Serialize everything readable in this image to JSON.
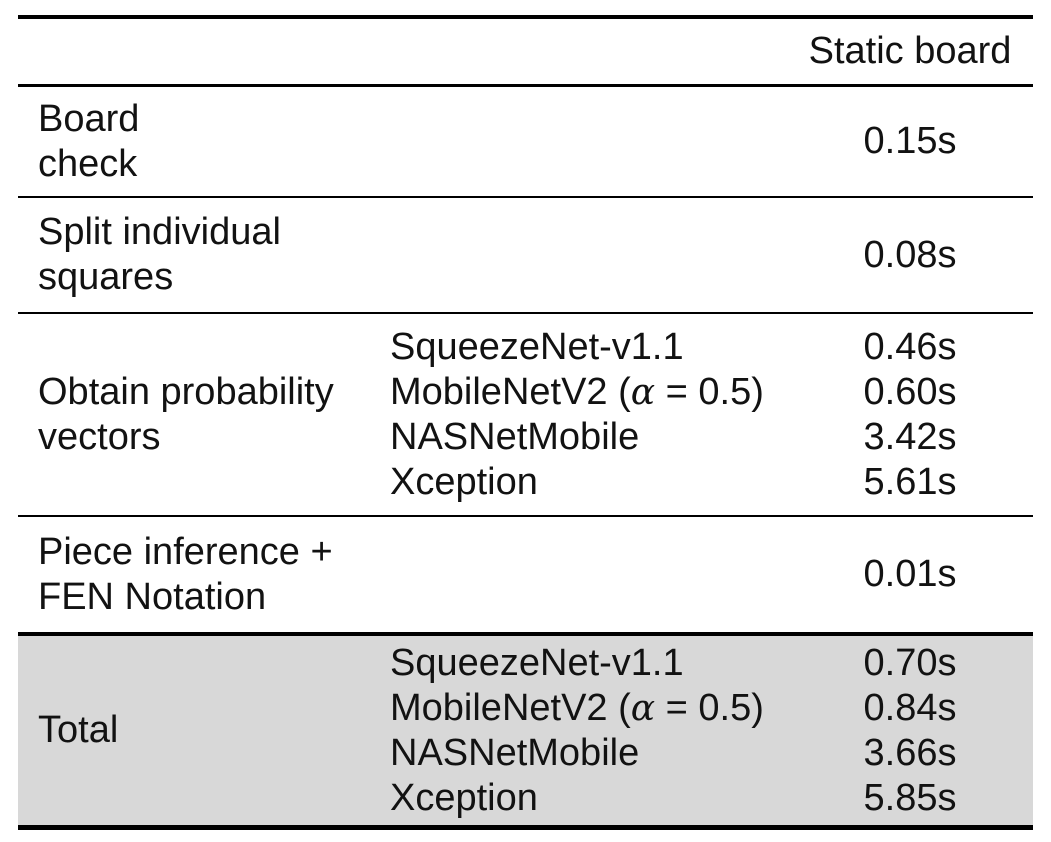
{
  "table": {
    "title_semantic": "pipeline-timing-table",
    "header": {
      "value_col": "Static board"
    },
    "rows": [
      {
        "label_lines": [
          "Board",
          "check"
        ],
        "value": "0.15s"
      },
      {
        "label_lines": [
          "Split individual",
          "squares"
        ],
        "value": "0.08s"
      },
      {
        "label_lines": [
          "Obtain probability",
          "vectors"
        ],
        "models": [
          "SqueezeNet-v1.1",
          {
            "pre": "MobileNetV2 (",
            "alpha": "α",
            "post": " = 0.5)"
          },
          "NASNetMobile",
          "Xception"
        ],
        "values": [
          "0.46s",
          "0.60s",
          "3.42s",
          "5.61s"
        ]
      },
      {
        "label_lines": [
          "Piece inference +",
          "FEN Notation"
        ],
        "value": "0.01s"
      },
      {
        "label_lines": [
          "Total"
        ],
        "models": [
          "SqueezeNet-v1.1",
          {
            "pre": "MobileNetV2 (",
            "alpha": "α",
            "post": " = 0.5)"
          },
          "NASNetMobile",
          "Xception"
        ],
        "values": [
          "0.70s",
          "0.84s",
          "3.66s",
          "5.85s"
        ],
        "highlight": true
      }
    ],
    "colors": {
      "highlight_bg": "#d8d8d8",
      "rule": "#000000",
      "text": "#121212"
    }
  }
}
